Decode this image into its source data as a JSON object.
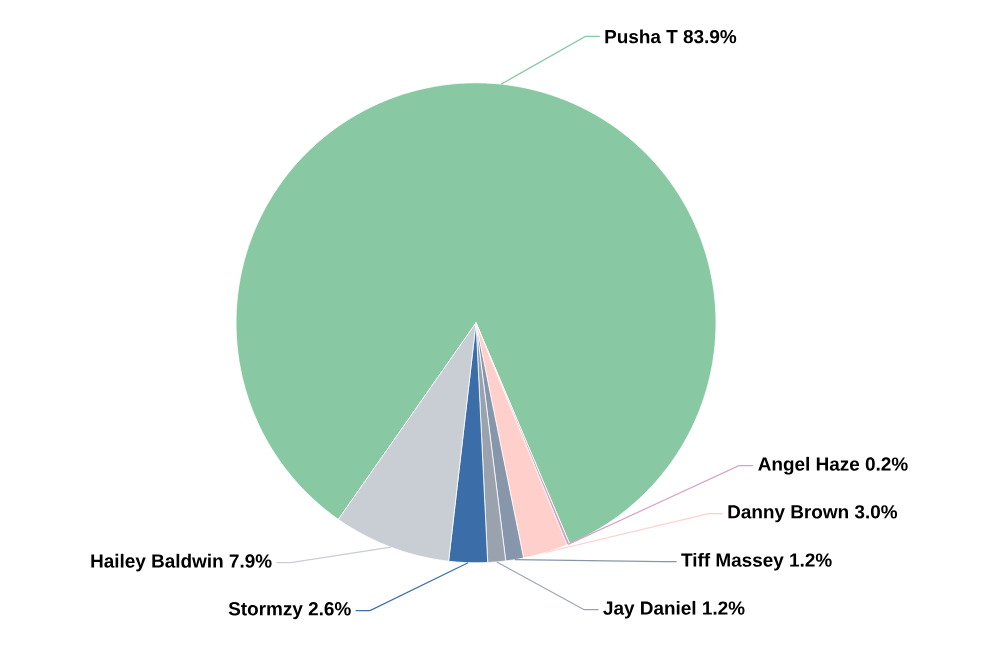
{
  "chart_data": {
    "type": "pie",
    "categories": [
      "Pusha T",
      "Angel Haze",
      "Danny Brown",
      "Tiff Massey",
      "Jay Daniel",
      "Stormzy",
      "Hailey Baldwin"
    ],
    "values": [
      83.9,
      0.2,
      3.0,
      1.2,
      1.2,
      2.6,
      7.9
    ],
    "value_labels": [
      "83.9%",
      "0.2%",
      "3.0%",
      "1.2%",
      "1.2%",
      "2.6%",
      "7.9%"
    ],
    "colors": [
      "#88c8a2",
      "#d8a3c4",
      "#ffd0cb",
      "#8796aa",
      "#9aa3ad",
      "#3b6ea9",
      "#c9ced4"
    ]
  }
}
